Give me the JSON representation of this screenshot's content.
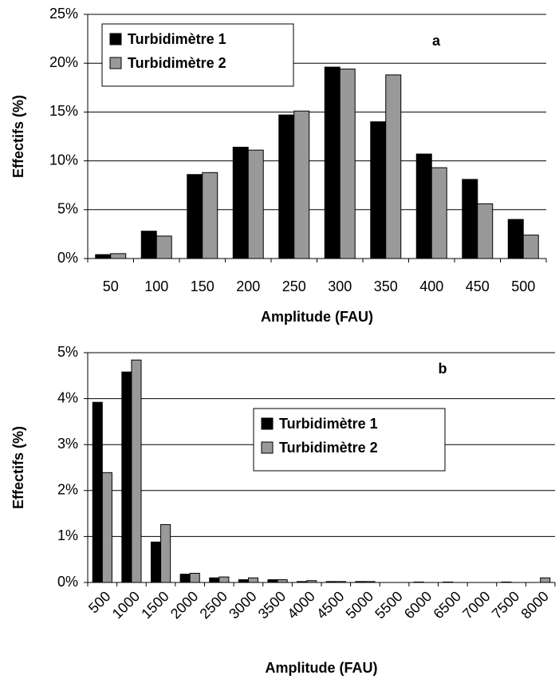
{
  "chart_data": [
    {
      "type": "bar",
      "annotation": "a",
      "xlabel": "Amplitude (FAU)",
      "ylabel": "Effectifs (%)",
      "categories": [
        "50",
        "100",
        "150",
        "200",
        "250",
        "300",
        "350",
        "400",
        "450",
        "500"
      ],
      "series": [
        {
          "name": "Turbidimètre 1",
          "color": "#000000",
          "values": [
            0.4,
            2.8,
            8.6,
            11.4,
            14.7,
            19.6,
            14.0,
            10.7,
            8.1,
            4.0
          ]
        },
        {
          "name": "Turbidimètre 2",
          "color": "#999999",
          "values": [
            0.5,
            2.3,
            8.8,
            11.1,
            15.1,
            19.4,
            18.8,
            9.3,
            5.6,
            2.4
          ]
        }
      ],
      "ylim": [
        0,
        25
      ],
      "yticks": [
        {
          "value": 0,
          "label": "0%"
        },
        {
          "value": 5,
          "label": "5%"
        },
        {
          "value": 10,
          "label": "10%"
        },
        {
          "value": 15,
          "label": "15%"
        },
        {
          "value": 20,
          "label": "20%"
        },
        {
          "value": 25,
          "label": "25%"
        }
      ],
      "grid": true,
      "legend": "upper left"
    },
    {
      "type": "bar",
      "annotation": "b",
      "xlabel": "Amplitude (FAU)",
      "ylabel": "Effectifs (%)",
      "categories": [
        "500",
        "1000",
        "1500",
        "2000",
        "2500",
        "3000",
        "3500",
        "4000",
        "4500",
        "5000",
        "5500",
        "6000",
        "6500",
        "7000",
        "7500",
        "8000"
      ],
      "series": [
        {
          "name": "Turbidimètre 1",
          "color": "#000000",
          "values": [
            3.92,
            4.58,
            0.88,
            0.18,
            0.1,
            0.06,
            0.06,
            0.02,
            0.02,
            0.02,
            0,
            0.01,
            0.01,
            0,
            0.01,
            0
          ]
        },
        {
          "name": "Turbidimètre 2",
          "color": "#999999",
          "values": [
            2.39,
            4.84,
            1.26,
            0.2,
            0.12,
            0.1,
            0.06,
            0.04,
            0.02,
            0.02,
            0,
            0,
            0,
            0,
            0,
            0.1
          ]
        }
      ],
      "ylim": [
        0,
        5
      ],
      "yticks": [
        {
          "value": 0,
          "label": "0%"
        },
        {
          "value": 1,
          "label": "1%"
        },
        {
          "value": 2,
          "label": "2%"
        },
        {
          "value": 3,
          "label": "3%"
        },
        {
          "value": 4,
          "label": "4%"
        },
        {
          "value": 5,
          "label": "5%"
        }
      ],
      "grid": true,
      "legend": "center"
    }
  ]
}
